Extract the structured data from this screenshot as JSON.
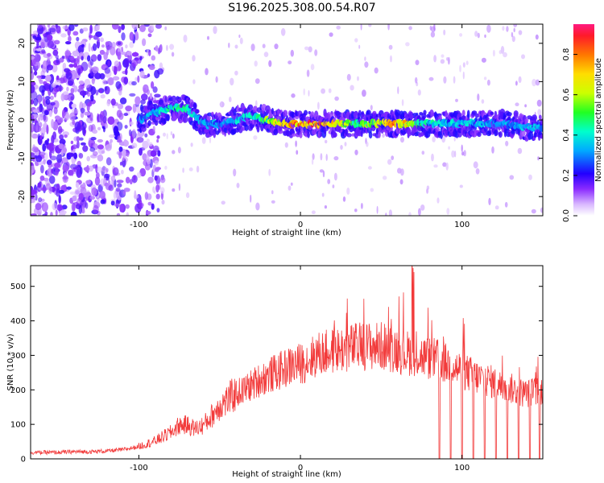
{
  "title": "S196.2025.308.00.54.R07",
  "colors": {
    "signal_line": "#f23a3a",
    "spectrogram_ridge": "#e8242a",
    "axis": "#000000"
  },
  "chart_data": [
    {
      "type": "heatmap",
      "xlabel": "Height of straight line (km)",
      "ylabel": "Frequency (Hz)",
      "xlim": [
        -167,
        150
      ],
      "ylim": [
        -25,
        25
      ],
      "x_ticks": [
        -100,
        0,
        100
      ],
      "x_tick_labels": [
        "-100",
        "0",
        "100"
      ],
      "y_ticks": [
        -20,
        -10,
        0,
        10,
        20
      ],
      "y_tick_labels": [
        "-20",
        "-10",
        "0",
        "10",
        "20"
      ],
      "colorbar": {
        "label": "Normalized spectral amplitude",
        "range": [
          0,
          0.95
        ],
        "ticks": [
          0.0,
          0.2,
          0.4,
          0.6,
          0.8
        ],
        "tick_labels": [
          "0.0",
          "0.2",
          "0.4",
          "0.6",
          "0.8"
        ],
        "colormap": "rainbow"
      },
      "ridge": {
        "x": [
          -100,
          -90,
          -80,
          -70,
          -60,
          -50,
          -40,
          -30,
          -20,
          -10,
          0,
          10,
          20,
          30,
          40,
          50,
          60,
          70,
          80,
          90,
          100,
          110,
          120,
          130,
          140,
          150
        ],
        "frequency": [
          0,
          2,
          3,
          3,
          -1,
          -1,
          0,
          1,
          0,
          -1,
          -1,
          -1,
          -1,
          -1,
          -1,
          -1,
          -1,
          -1,
          -1,
          -1,
          -1,
          -1,
          -1,
          -1,
          -2,
          -2
        ],
        "amplitude": [
          0.3,
          0.4,
          0.45,
          0.5,
          0.35,
          0.35,
          0.4,
          0.45,
          0.6,
          0.8,
          0.85,
          0.9,
          0.8,
          0.6,
          0.55,
          0.7,
          0.85,
          0.65,
          0.45,
          0.4,
          0.4,
          0.4,
          0.35,
          0.35,
          0.4,
          0.35
        ]
      },
      "noise_region_end_km": -95
    },
    {
      "type": "line",
      "xlabel": "Height of straight line (km)",
      "ylabel": "SNR (10 * v/v)",
      "xlim": [
        -167,
        150
      ],
      "ylim": [
        0,
        560
      ],
      "x_ticks": [
        -100,
        0,
        100
      ],
      "x_tick_labels": [
        "-100",
        "0",
        "100"
      ],
      "y_ticks": [
        0,
        100,
        200,
        300,
        400,
        500
      ],
      "y_tick_labels": [
        "0",
        "100",
        "200",
        "300",
        "400",
        "500"
      ],
      "series": [
        {
          "name": "SNR",
          "x": [
            -167,
            -150,
            -140,
            -130,
            -120,
            -110,
            -100,
            -90,
            -80,
            -75,
            -70,
            -65,
            -60,
            -55,
            -50,
            -45,
            -40,
            -35,
            -30,
            -25,
            -20,
            -15,
            -10,
            -5,
            0,
            5,
            10,
            15,
            20,
            25,
            30,
            35,
            40,
            45,
            50,
            55,
            60,
            65,
            70,
            75,
            80,
            85,
            90,
            95,
            100,
            105,
            110,
            115,
            120,
            125,
            130,
            135,
            140,
            145,
            150
          ],
          "values": [
            18,
            18,
            20,
            20,
            22,
            26,
            35,
            50,
            75,
            95,
            95,
            85,
            95,
            120,
            150,
            165,
            185,
            195,
            210,
            225,
            235,
            245,
            255,
            265,
            270,
            280,
            295,
            300,
            305,
            310,
            315,
            318,
            320,
            320,
            320,
            315,
            310,
            300,
            300,
            290,
            285,
            280,
            270,
            260,
            250,
            240,
            230,
            225,
            215,
            205,
            200,
            190,
            185,
            190,
            195
          ]
        }
      ],
      "peak_label_max": 560,
      "dropouts_km": [
        86,
        93,
        100,
        107,
        114,
        121,
        128,
        135,
        142,
        148
      ]
    }
  ]
}
